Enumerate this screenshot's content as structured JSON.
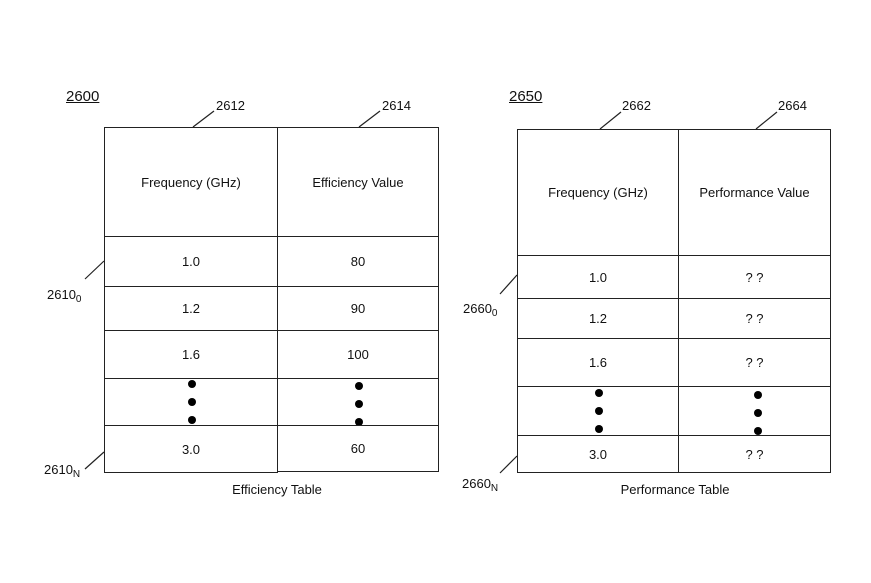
{
  "tables": [
    {
      "figure_id": "2600",
      "col_refs": [
        "2612",
        "2614"
      ],
      "row_refs": {
        "first": "2610",
        "first_sub": "0",
        "last": "2610",
        "last_sub": "N"
      },
      "headers": [
        "Frequency (GHz)",
        "Efficiency Value"
      ],
      "rows": [
        [
          "1.0",
          "80"
        ],
        [
          "1.2",
          "90"
        ],
        [
          "1.6",
          "100"
        ],
        [
          "3.0",
          "60"
        ]
      ],
      "caption": "Efficiency Table"
    },
    {
      "figure_id": "2650",
      "col_refs": [
        "2662",
        "2664"
      ],
      "row_refs": {
        "first": "2660",
        "first_sub": "0",
        "last": "2660",
        "last_sub": "N"
      },
      "headers": [
        "Frequency (GHz)",
        "Performance Value"
      ],
      "rows": [
        [
          "1.0",
          "? ?"
        ],
        [
          "1.2",
          "? ?"
        ],
        [
          "1.6",
          "? ?"
        ],
        [
          "3.0",
          "? ?"
        ]
      ],
      "caption": "Performance Table"
    }
  ]
}
